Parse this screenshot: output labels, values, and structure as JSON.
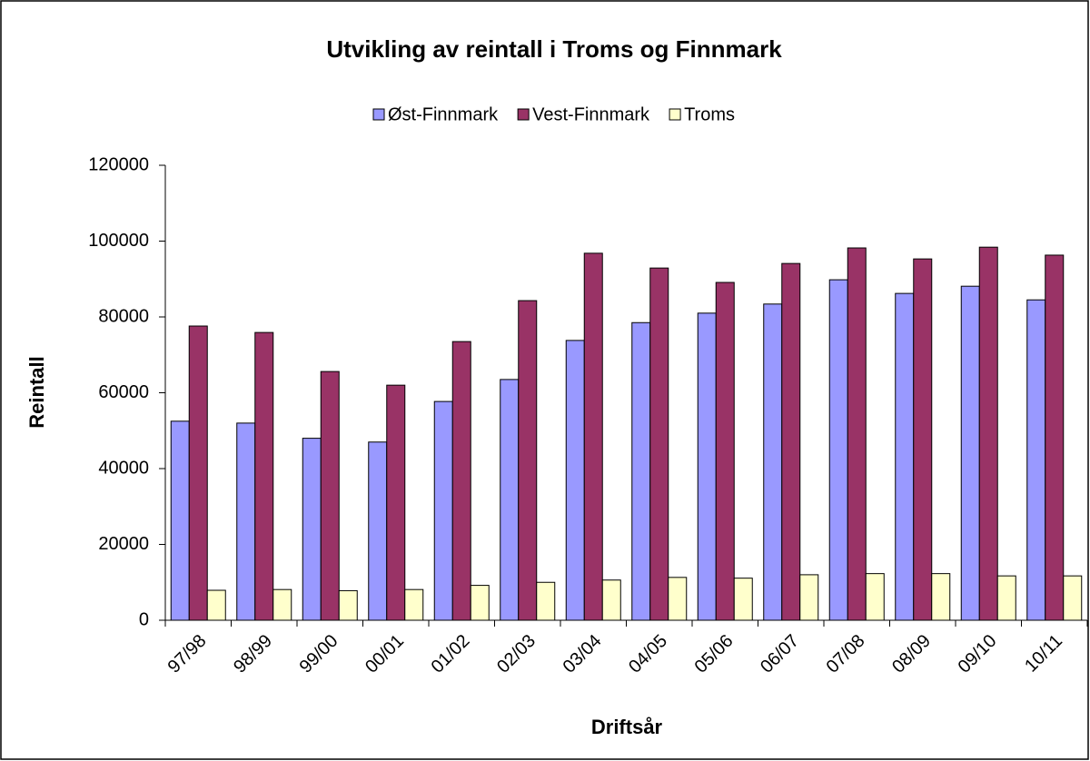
{
  "chart_data": {
    "type": "bar",
    "title": "Utvikling av reintall i Troms og Finnmark",
    "x_label": "Driftsår",
    "y_label": "Reintall",
    "categories": [
      "97/98",
      "98/99",
      "99/00",
      "00/01",
      "01/02",
      "02/03",
      "03/04",
      "04/05",
      "05/06",
      "06/07",
      "07/08",
      "08/09",
      "09/10",
      "10/11"
    ],
    "series": [
      {
        "name": "Øst-Finnmark",
        "color": "#9999ff",
        "values": [
          52500,
          52000,
          48000,
          47000,
          57700,
          63500,
          73800,
          78500,
          81000,
          83400,
          89800,
          86200,
          88100,
          84500
        ]
      },
      {
        "name": "Vest-Finnmark",
        "color": "#993366",
        "values": [
          77600,
          75900,
          65600,
          62000,
          73500,
          84300,
          96800,
          92900,
          89100,
          94100,
          98200,
          95300,
          98400,
          96300
        ]
      },
      {
        "name": "Troms",
        "color": "#ffffcc",
        "values": [
          7900,
          8100,
          7800,
          8100,
          9200,
          10000,
          10600,
          11300,
          11100,
          12000,
          12300,
          12300,
          11700,
          11700
        ]
      }
    ],
    "ylim": [
      0,
      120000
    ],
    "yticks": [
      0,
      20000,
      40000,
      60000,
      80000,
      100000,
      120000
    ],
    "legend": "top"
  }
}
